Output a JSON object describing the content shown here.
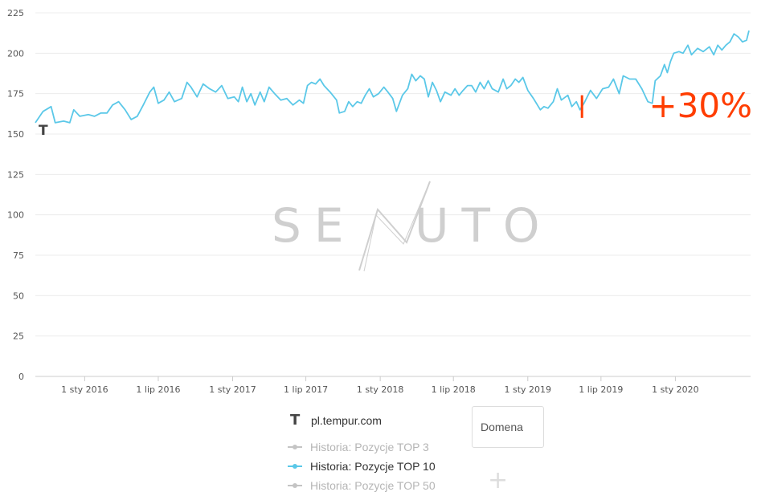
{
  "chart_data": {
    "type": "line",
    "y_ticks": [
      "0",
      "25",
      "50",
      "75",
      "100",
      "125",
      "150",
      "175",
      "200",
      "225"
    ],
    "x_ticks": [
      "1 sty 2016",
      "1 lip 2016",
      "1 sty 2017",
      "1 lip 2017",
      "1 sty 2018",
      "1 lip 2018",
      "1 sty 2019",
      "1 lip 2019",
      "1 sty 2020"
    ],
    "ylim": [
      0,
      225
    ],
    "grid": true,
    "series": [
      {
        "name": "Historia: Pozycje TOP 10",
        "color": "#5bc8e8",
        "points": [
          [
            "2015-09-01",
            157
          ],
          [
            "2015-09-20",
            164
          ],
          [
            "2015-10-10",
            167
          ],
          [
            "2015-10-20",
            157
          ],
          [
            "2015-11-10",
            158
          ],
          [
            "2015-11-25",
            157
          ],
          [
            "2015-12-05",
            165
          ],
          [
            "2015-12-20",
            161
          ],
          [
            "2016-01-10",
            162
          ],
          [
            "2016-01-25",
            161
          ],
          [
            "2016-02-10",
            163
          ],
          [
            "2016-02-25",
            163
          ],
          [
            "2016-03-10",
            168
          ],
          [
            "2016-03-25",
            170
          ],
          [
            "2016-04-10",
            165
          ],
          [
            "2016-04-25",
            159
          ],
          [
            "2016-05-10",
            161
          ],
          [
            "2016-05-25",
            168
          ],
          [
            "2016-06-10",
            176
          ],
          [
            "2016-06-20",
            179
          ],
          [
            "2016-07-01",
            169
          ],
          [
            "2016-07-15",
            171
          ],
          [
            "2016-07-28",
            176
          ],
          [
            "2016-08-10",
            170
          ],
          [
            "2016-08-28",
            172
          ],
          [
            "2016-09-10",
            182
          ],
          [
            "2016-09-20",
            179
          ],
          [
            "2016-10-05",
            173
          ],
          [
            "2016-10-20",
            181
          ],
          [
            "2016-11-05",
            178
          ],
          [
            "2016-11-20",
            176
          ],
          [
            "2016-12-05",
            180
          ],
          [
            "2016-12-20",
            172
          ],
          [
            "2017-01-05",
            173
          ],
          [
            "2017-01-15",
            170
          ],
          [
            "2017-01-25",
            179
          ],
          [
            "2017-02-05",
            170
          ],
          [
            "2017-02-15",
            175
          ],
          [
            "2017-02-25",
            168
          ],
          [
            "2017-03-10",
            176
          ],
          [
            "2017-03-20",
            170
          ],
          [
            "2017-04-01",
            179
          ],
          [
            "2017-04-15",
            175
          ],
          [
            "2017-04-30",
            171
          ],
          [
            "2017-05-15",
            172
          ],
          [
            "2017-05-30",
            168
          ],
          [
            "2017-06-15",
            171
          ],
          [
            "2017-06-25",
            169
          ],
          [
            "2017-07-05",
            180
          ],
          [
            "2017-07-15",
            182
          ],
          [
            "2017-07-25",
            181
          ],
          [
            "2017-08-05",
            184
          ],
          [
            "2017-08-15",
            180
          ],
          [
            "2017-08-30",
            176
          ],
          [
            "2017-09-15",
            171
          ],
          [
            "2017-09-22",
            163
          ],
          [
            "2017-10-05",
            164
          ],
          [
            "2017-10-15",
            170
          ],
          [
            "2017-10-25",
            167
          ],
          [
            "2017-11-05",
            170
          ],
          [
            "2017-11-15",
            169
          ],
          [
            "2017-11-25",
            174
          ],
          [
            "2017-12-05",
            178
          ],
          [
            "2017-12-15",
            173
          ],
          [
            "2017-12-28",
            175
          ],
          [
            "2018-01-10",
            179
          ],
          [
            "2018-01-20",
            176
          ],
          [
            "2018-02-01",
            172
          ],
          [
            "2018-02-10",
            164
          ],
          [
            "2018-02-25",
            174
          ],
          [
            "2018-03-10",
            178
          ],
          [
            "2018-03-20",
            187
          ],
          [
            "2018-03-30",
            183
          ],
          [
            "2018-04-10",
            186
          ],
          [
            "2018-04-20",
            184
          ],
          [
            "2018-04-30",
            173
          ],
          [
            "2018-05-10",
            182
          ],
          [
            "2018-05-20",
            177
          ],
          [
            "2018-05-30",
            170
          ],
          [
            "2018-06-10",
            176
          ],
          [
            "2018-06-25",
            174
          ],
          [
            "2018-07-05",
            178
          ],
          [
            "2018-07-15",
            174
          ],
          [
            "2018-07-25",
            177
          ],
          [
            "2018-08-05",
            180
          ],
          [
            "2018-08-15",
            180
          ],
          [
            "2018-08-25",
            176
          ],
          [
            "2018-09-05",
            182
          ],
          [
            "2018-09-15",
            178
          ],
          [
            "2018-09-25",
            183
          ],
          [
            "2018-10-05",
            178
          ],
          [
            "2018-10-20",
            176
          ],
          [
            "2018-11-01",
            184
          ],
          [
            "2018-11-10",
            178
          ],
          [
            "2018-11-20",
            180
          ],
          [
            "2018-12-01",
            184
          ],
          [
            "2018-12-10",
            182
          ],
          [
            "2018-12-20",
            185
          ],
          [
            "2019-01-01",
            177
          ],
          [
            "2019-01-15",
            172
          ],
          [
            "2019-02-01",
            165
          ],
          [
            "2019-02-10",
            167
          ],
          [
            "2019-02-20",
            166
          ],
          [
            "2019-03-05",
            170
          ],
          [
            "2019-03-15",
            178
          ],
          [
            "2019-03-25",
            171
          ],
          [
            "2019-04-10",
            174
          ],
          [
            "2019-04-20",
            167
          ],
          [
            "2019-05-01",
            170
          ],
          [
            "2019-05-10",
            165
          ],
          [
            "2019-05-20",
            169
          ],
          [
            "2019-06-05",
            177
          ],
          [
            "2019-06-20",
            172
          ],
          [
            "2019-07-05",
            178
          ],
          [
            "2019-07-20",
            179
          ],
          [
            "2019-08-01",
            184
          ],
          [
            "2019-08-15",
            175
          ],
          [
            "2019-08-25",
            186
          ],
          [
            "2019-09-10",
            184
          ],
          [
            "2019-09-25",
            184
          ],
          [
            "2019-10-10",
            178
          ],
          [
            "2019-10-25",
            170
          ],
          [
            "2019-11-05",
            169
          ],
          [
            "2019-11-12",
            183
          ],
          [
            "2019-11-25",
            186
          ],
          [
            "2019-12-05",
            193
          ],
          [
            "2019-12-12",
            188
          ],
          [
            "2019-12-20",
            195
          ],
          [
            "2019-12-28",
            200
          ],
          [
            "2020-01-10",
            201
          ],
          [
            "2020-01-20",
            200
          ],
          [
            "2020-02-01",
            205
          ],
          [
            "2020-02-10",
            199
          ],
          [
            "2020-02-25",
            203
          ],
          [
            "2020-03-10",
            201
          ],
          [
            "2020-03-25",
            204
          ],
          [
            "2020-04-05",
            199
          ],
          [
            "2020-04-15",
            205
          ],
          [
            "2020-04-25",
            202
          ],
          [
            "2020-05-05",
            205
          ],
          [
            "2020-05-15",
            207
          ],
          [
            "2020-05-25",
            212
          ],
          [
            "2020-06-05",
            210
          ],
          [
            "2020-06-15",
            207
          ],
          [
            "2020-06-25",
            208
          ],
          [
            "2020-07-01",
            214
          ]
        ]
      }
    ],
    "annotations": [
      {
        "type": "marker",
        "date": "2019-05-15",
        "from": 160,
        "to": 174,
        "color": "#ff3d00"
      },
      {
        "type": "text",
        "text": "+30%",
        "color": "#ff3d00"
      }
    ]
  },
  "legend": {
    "domain_icon": "T",
    "domain": "pl.tempur.com",
    "items": [
      {
        "label": "Historia: Pozycje TOP 3",
        "color": "#c4c4c4",
        "active": false
      },
      {
        "label": "Historia: Pozycje TOP 10",
        "color": "#5bc8e8",
        "active": true
      },
      {
        "label": "Historia: Pozycje TOP 50",
        "color": "#c4c4c4",
        "active": false
      }
    ]
  },
  "domain_box": {
    "label": "Domena"
  },
  "add_button": {
    "label": "+"
  },
  "watermark": {
    "left": "SE",
    "right": "UTO",
    "color": "#cfcfcf"
  },
  "chart_marker_icon": "T"
}
